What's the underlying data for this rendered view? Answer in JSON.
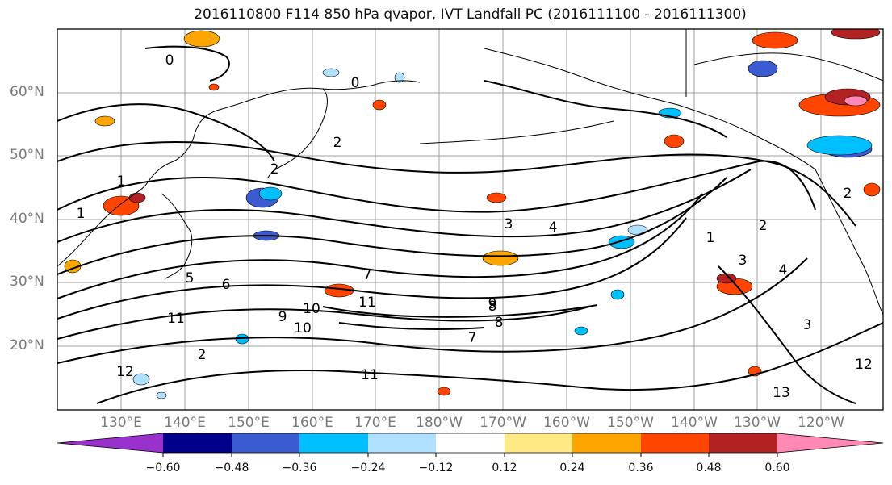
{
  "title": "2016110800 F114 850 hPa qvapor, IVT Landfall PC (2016111100 - 2016111300)",
  "map": {
    "lat_labels": [
      "60°N",
      "50°N",
      "40°N",
      "30°N",
      "20°N"
    ],
    "lon_labels": [
      "130°E",
      "140°E",
      "150°E",
      "160°E",
      "170°E",
      "180°W",
      "170°W",
      "160°W",
      "150°W",
      "140°W",
      "130°W",
      "120°W"
    ],
    "contour_labels": [
      "0",
      "0",
      "1",
      "1",
      "2",
      "2",
      "2",
      "2",
      "3",
      "3",
      "3",
      "4",
      "4",
      "5",
      "6",
      "7",
      "7",
      "8",
      "8",
      "9",
      "9",
      "10",
      "10",
      "11",
      "11",
      "11",
      "12",
      "12",
      "13",
      "2",
      "1"
    ],
    "land_color": "#000000",
    "grid_color": "#a0a0a0"
  },
  "colorbar": {
    "ticks": [
      "−0.60",
      "−0.48",
      "−0.36",
      "−0.24",
      "−0.12",
      "0.12",
      "0.24",
      "0.36",
      "0.48",
      "0.60"
    ],
    "colors": [
      "#9932cc",
      "#00008b",
      "#3a5bd2",
      "#00bfff",
      "#b0e0ff",
      "#ffffff",
      "#ffe985",
      "#ffa500",
      "#ff4500",
      "#b22222",
      "#ff88b5"
    ]
  }
}
